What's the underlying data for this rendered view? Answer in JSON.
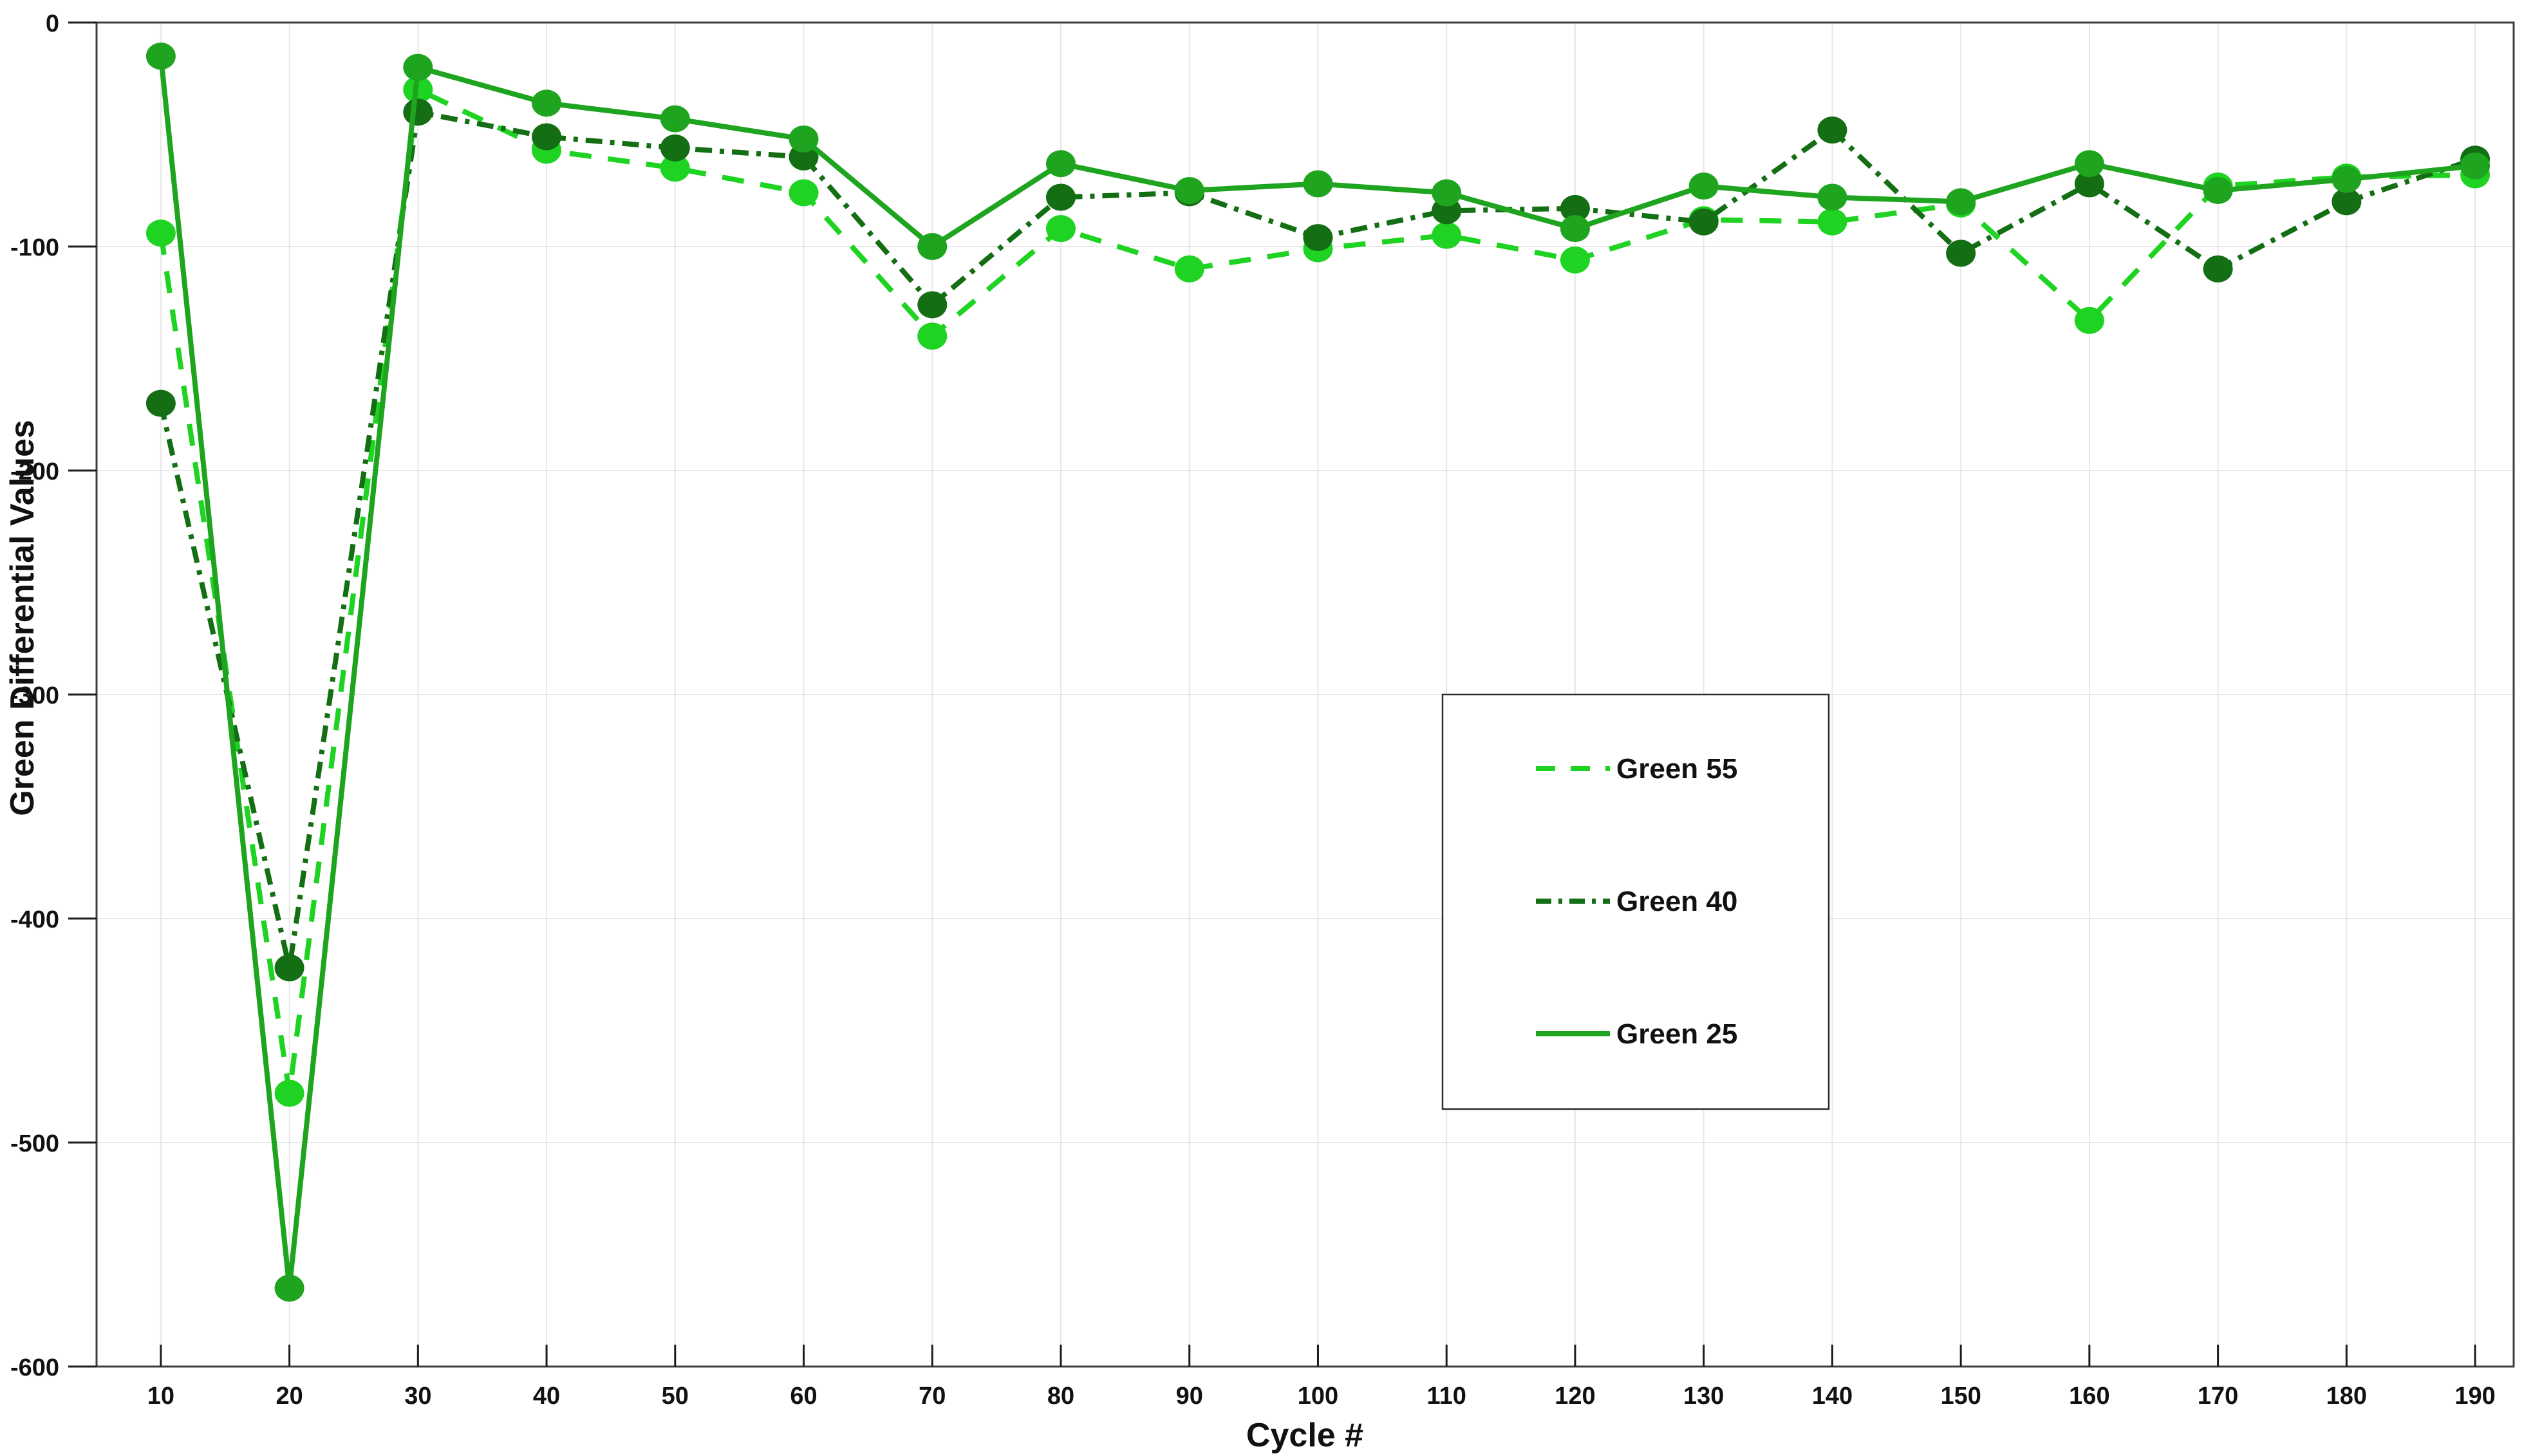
{
  "figure": {
    "background": "#ffffff",
    "grid_color": "#e7e7e7",
    "box_color": "#3d3d3d",
    "tick_color": "#1a1a1a",
    "legend": {
      "border_color": "#2b2b2b",
      "background": "#ffffff",
      "entries": [
        "Green 55",
        "Green 40",
        "Green 25"
      ]
    }
  },
  "chart_data": {
    "type": "line",
    "title": "",
    "xlabel": "Cycle #",
    "ylabel": "Green Differential Values",
    "x": [
      10,
      20,
      30,
      40,
      50,
      60,
      70,
      80,
      90,
      100,
      110,
      120,
      130,
      140,
      150,
      160,
      170,
      180,
      190
    ],
    "x_ticks": [
      10,
      20,
      30,
      40,
      50,
      60,
      70,
      80,
      90,
      100,
      110,
      120,
      130,
      140,
      150,
      160,
      170,
      180,
      190
    ],
    "y_ticks": [
      0,
      -100,
      -200,
      -300,
      -400,
      -500,
      -600
    ],
    "xlim": [
      5,
      193
    ],
    "ylim": [
      -600,
      0
    ],
    "grid": true,
    "legend_position": "inside-center-right",
    "series": [
      {
        "name": "Green 55",
        "color": "#1ed321",
        "line_style": "dashed",
        "marker": "circle",
        "values": [
          -94,
          -478,
          -30,
          -57,
          -65,
          -76,
          -140,
          -92,
          -110,
          -101,
          -95,
          -106,
          -88,
          -89,
          -81,
          -133,
          -73,
          -69,
          -68
        ]
      },
      {
        "name": "Green 40",
        "color": "#146e14",
        "line_style": "dash-dot",
        "marker": "circle",
        "values": [
          -170,
          -422,
          -40,
          -51,
          -56,
          -60,
          -126,
          -78,
          -76,
          -96,
          -84,
          -83,
          -89,
          -48,
          -103,
          -72,
          -110,
          -80,
          -61
        ]
      },
      {
        "name": "Green 25",
        "color": "#1fa41f",
        "line_style": "solid",
        "marker": "circle",
        "values": [
          -15,
          -565,
          -20,
          -36,
          -43,
          -52,
          -100,
          -63,
          -75,
          -72,
          -76,
          -92,
          -73,
          -78,
          -80,
          -63,
          -75,
          -70,
          -64
        ]
      }
    ]
  }
}
